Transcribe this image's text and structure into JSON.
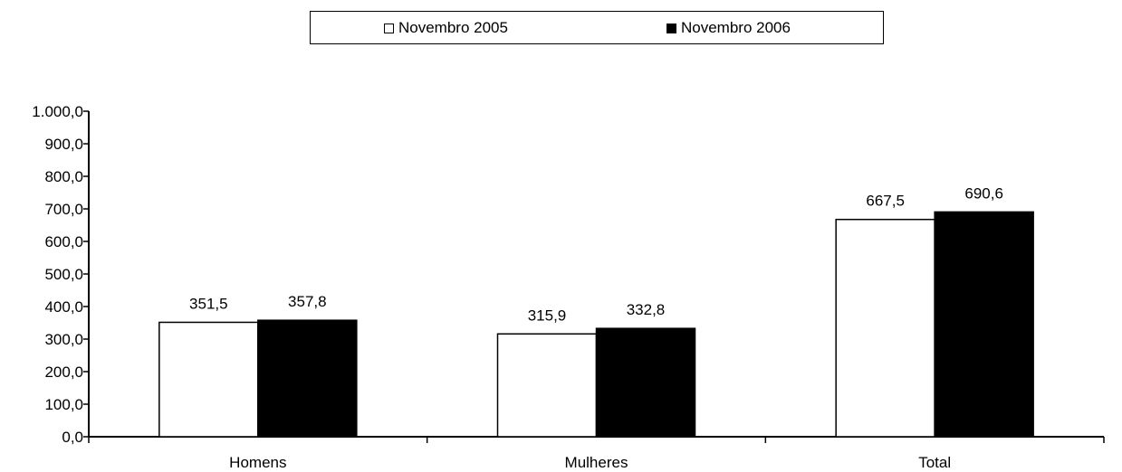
{
  "chart_data": {
    "type": "bar",
    "categories": [
      "Homens",
      "Mulheres",
      "Total"
    ],
    "series": [
      {
        "name": "Novembro 2005",
        "values": [
          351.5,
          315.9,
          667.5
        ],
        "labels": [
          "351,5",
          "315,9",
          "667,5"
        ],
        "color": "#ffffff"
      },
      {
        "name": "Novembro 2006",
        "values": [
          357.8,
          332.8,
          690.6
        ],
        "labels": [
          "357,8",
          "332,8",
          "690,6"
        ],
        "color": "#000000"
      }
    ],
    "ylim": [
      0,
      1000
    ],
    "yticks": [
      0,
      100,
      200,
      300,
      400,
      500,
      600,
      700,
      800,
      900,
      1000
    ],
    "ytick_labels": [
      "0,0",
      "100,0",
      "200,0",
      "300,0",
      "400,0",
      "500,0",
      "600,0",
      "700,0",
      "800,0",
      "900,0",
      "1.000,0"
    ],
    "title": "",
    "xlabel": "",
    "ylabel": "",
    "grid": false,
    "legend_position": "top-center"
  }
}
